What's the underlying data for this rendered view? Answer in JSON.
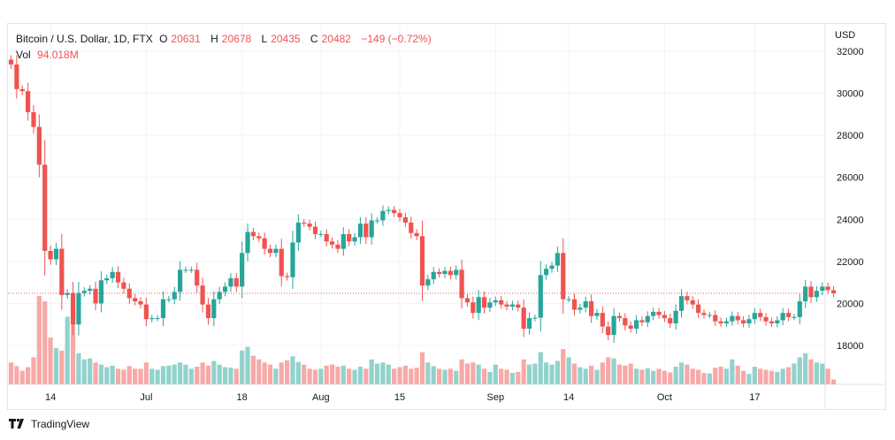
{
  "header": {
    "symbol": "Bitcoin / U.S. Dollar, 1D, FTX",
    "o_label": "O",
    "o": "20631",
    "h_label": "H",
    "h": "20678",
    "l_label": "L",
    "l": "20435",
    "c_label": "C",
    "c": "20482",
    "change": "−149 (−0.72%)",
    "vol_label": "Vol",
    "vol": "94.018M"
  },
  "currency": "USD",
  "watermark": "TradingView",
  "colors": {
    "up": "#26a69a",
    "down": "#ef5350",
    "vol_up": "#92d2cc",
    "vol_down": "#f7a9a7",
    "grid": "#f0f3fa"
  },
  "chart_data": {
    "type": "candlestick",
    "start_date": "2022-06-07",
    "first_open": 31600,
    "close": [
      31370,
      30200,
      30100,
      29100,
      28400,
      26600,
      22500,
      22100,
      22600,
      20400,
      20500,
      19000,
      20500,
      20600,
      20700,
      20000,
      21100,
      21200,
      21500,
      21000,
      20700,
      20250,
      20100,
      19950,
      19250,
      19300,
      19300,
      20200,
      20200,
      20550,
      21600,
      21600,
      21600,
      20850,
      19950,
      19300,
      20200,
      20550,
      20800,
      21200,
      20800,
      22400,
      23400,
      23200,
      23100,
      22600,
      22400,
      22600,
      21300,
      21250,
      22900,
      23850,
      23800,
      23650,
      23300,
      23300,
      22950,
      22800,
      22600,
      23300,
      22950,
      23150,
      23800,
      23150,
      23950,
      23950,
      24400,
      24450,
      24300,
      24100,
      23850,
      23350,
      23200,
      20850,
      21150,
      21500,
      21400,
      21550,
      21350,
      21600,
      20250,
      20050,
      19550,
      20300,
      19800,
      20050,
      20150,
      19950,
      19850,
      19950,
      19800,
      18800,
      19300,
      19320,
      21350,
      21650,
      21800,
      22400,
      20200,
      20200,
      19700,
      19800,
      20100,
      19400,
      19550,
      18900,
      18500,
      19400,
      19300,
      18950,
      18800,
      19200,
      19100,
      19400,
      19600,
      19450,
      19300,
      19050,
      19650,
      20350,
      20150,
      19950,
      19550,
      19450,
      19450,
      19150,
      19050,
      19150,
      19400,
      19200,
      19050,
      19250,
      19550,
      19350,
      19150,
      19050,
      19200,
      19550,
      19350,
      19350,
      20100,
      20800,
      20300,
      20600,
      20800,
      20631,
      20482
    ],
    "volume_m": [
      420,
      350,
      260,
      330,
      520,
      1700,
      1600,
      900,
      700,
      650,
      1300,
      1500,
      600,
      480,
      500,
      420,
      380,
      330,
      360,
      300,
      280,
      350,
      300,
      300,
      420,
      300,
      280,
      350,
      360,
      380,
      420,
      380,
      300,
      340,
      420,
      360,
      450,
      380,
      330,
      320,
      300,
      650,
      720,
      550,
      480,
      420,
      380,
      300,
      420,
      460,
      540,
      430,
      380,
      300,
      280,
      300,
      360,
      380,
      340,
      360,
      300,
      280,
      340,
      300,
      480,
      400,
      420,
      380,
      300,
      330,
      360,
      300,
      320,
      620,
      420,
      350,
      300,
      280,
      300,
      260,
      480,
      400,
      420,
      380,
      300,
      240,
      380,
      300,
      280,
      220,
      240,
      480,
      380,
      400,
      620,
      420,
      380,
      450,
      680,
      520,
      400,
      330,
      300,
      360,
      280,
      420,
      520,
      500,
      380,
      360,
      400,
      300,
      280,
      310,
      260,
      300,
      260,
      230,
      340,
      420,
      380,
      300,
      280,
      220,
      210,
      320,
      340,
      300,
      480,
      360,
      260,
      200,
      340,
      300,
      280,
      260,
      240,
      300,
      330,
      400,
      520,
      600,
      480,
      420,
      400,
      300,
      94
    ],
    "ylim": [
      16600,
      33200
    ],
    "yticks": [
      18000,
      20000,
      22000,
      24000,
      26000,
      28000,
      30000,
      32000
    ],
    "xticks": [
      {
        "label": "14",
        "day": 7
      },
      {
        "label": "Jul",
        "day": 24
      },
      {
        "label": "18",
        "day": 41
      },
      {
        "label": "Aug",
        "day": 55
      },
      {
        "label": "15",
        "day": 69
      },
      {
        "label": "Sep",
        "day": 86
      },
      {
        "label": "14",
        "day": 99
      },
      {
        "label": "Oct",
        "day": 116
      },
      {
        "label": "17",
        "day": 132
      }
    ],
    "last_price": 20482
  }
}
